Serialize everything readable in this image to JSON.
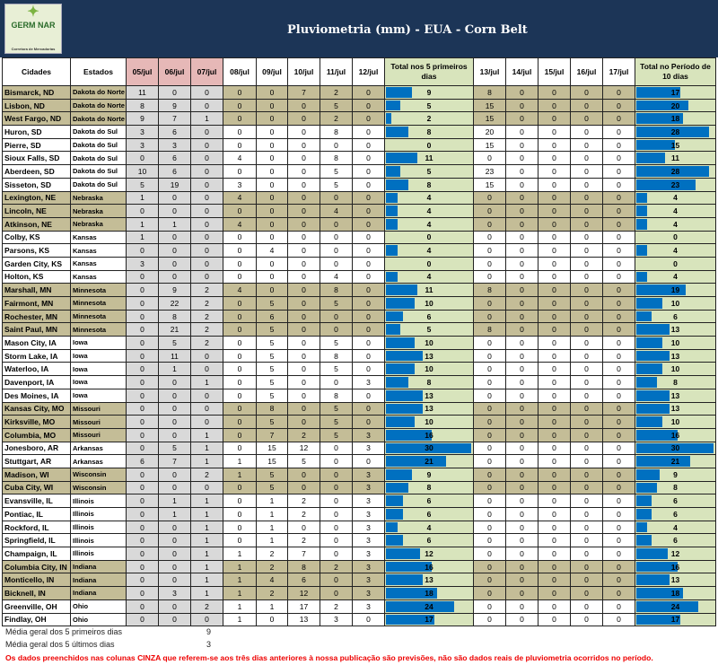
{
  "header": {
    "title": "Pluviometria (mm) - EUA - Corn Belt",
    "logo_text": "GERM NAR",
    "logo_sub": "Corretora de Mercadorias"
  },
  "columns": [
    "Cidades",
    "Estados",
    "05/jul",
    "06/jul",
    "07/jul",
    "08/jul",
    "09/jul",
    "10/jul",
    "11/jul",
    "12/jul",
    "Total nos 5 primeiros dias",
    "13/jul",
    "14/jul",
    "15/jul",
    "16/jul",
    "17/jul",
    "Total no Período de 10 dias"
  ],
  "colors": {
    "banner": "#1c3557",
    "tan": "#c4bd97",
    "gray": "#d9d9d9",
    "pink": "#e6b8b7",
    "total_bg": "#d8e4bc",
    "bar": "#0070c0",
    "note": "#ee0000"
  },
  "bar_max": 30,
  "rows": [
    {
      "city": "Bismarck, ND",
      "state": "Dakota do Norte",
      "shaded": true,
      "past": [
        11,
        0,
        0
      ],
      "d": [
        0,
        0,
        7,
        2,
        0
      ],
      "t5": 9,
      "n": [
        8,
        0,
        0,
        0,
        0
      ],
      "t10": 17
    },
    {
      "city": "Lisbon, ND",
      "state": "Dakota do Norte",
      "shaded": true,
      "past": [
        8,
        9,
        0
      ],
      "d": [
        0,
        0,
        0,
        5,
        0
      ],
      "t5": 5,
      "n": [
        15,
        0,
        0,
        0,
        0
      ],
      "t10": 20
    },
    {
      "city": "West Fargo, ND",
      "state": "Dakota do Norte",
      "shaded": true,
      "past": [
        9,
        7,
        1
      ],
      "d": [
        0,
        0,
        0,
        2,
        0
      ],
      "t5": 2,
      "n": [
        15,
        0,
        0,
        0,
        0
      ],
      "t10": 18
    },
    {
      "city": "Huron, SD",
      "state": "Dakota do Sul",
      "shaded": false,
      "past": [
        3,
        6,
        0
      ],
      "d": [
        0,
        0,
        0,
        8,
        0
      ],
      "t5": 8,
      "n": [
        20,
        0,
        0,
        0,
        0
      ],
      "t10": 28
    },
    {
      "city": "Pierre, SD",
      "state": "Dakota do Sul",
      "shaded": false,
      "past": [
        3,
        3,
        0
      ],
      "d": [
        0,
        0,
        0,
        0,
        0
      ],
      "t5": 0,
      "n": [
        15,
        0,
        0,
        0,
        0
      ],
      "t10": 15
    },
    {
      "city": "Sioux Falls, SD",
      "state": "Dakota do Sul",
      "shaded": false,
      "past": [
        0,
        6,
        0
      ],
      "d": [
        4,
        0,
        0,
        8,
        0
      ],
      "t5": 11,
      "n": [
        0,
        0,
        0,
        0,
        0
      ],
      "t10": 11
    },
    {
      "city": "Aberdeen, SD",
      "state": "Dakota do Sul",
      "shaded": false,
      "past": [
        10,
        6,
        0
      ],
      "d": [
        0,
        0,
        0,
        5,
        0
      ],
      "t5": 5,
      "n": [
        23,
        0,
        0,
        0,
        0
      ],
      "t10": 28
    },
    {
      "city": "Sisseton, SD",
      "state": "Dakota do Sul",
      "shaded": false,
      "past": [
        5,
        19,
        0
      ],
      "d": [
        3,
        0,
        0,
        5,
        0
      ],
      "t5": 8,
      "n": [
        15,
        0,
        0,
        0,
        0
      ],
      "t10": 23
    },
    {
      "city": "Lexington, NE",
      "state": "Nebraska",
      "shaded": true,
      "past": [
        1,
        0,
        0
      ],
      "d": [
        4,
        0,
        0,
        0,
        0
      ],
      "t5": 4,
      "n": [
        0,
        0,
        0,
        0,
        0
      ],
      "t10": 4
    },
    {
      "city": "Lincoln, NE",
      "state": "Nebraska",
      "shaded": true,
      "past": [
        0,
        0,
        0
      ],
      "d": [
        0,
        0,
        0,
        4,
        0
      ],
      "t5": 4,
      "n": [
        0,
        0,
        0,
        0,
        0
      ],
      "t10": 4
    },
    {
      "city": "Atkinson, NE",
      "state": "Nebraska",
      "shaded": true,
      "past": [
        1,
        1,
        0
      ],
      "d": [
        4,
        0,
        0,
        0,
        0
      ],
      "t5": 4,
      "n": [
        0,
        0,
        0,
        0,
        0
      ],
      "t10": 4
    },
    {
      "city": "Colby, KS",
      "state": "Kansas",
      "shaded": false,
      "past": [
        1,
        0,
        0
      ],
      "d": [
        0,
        0,
        0,
        0,
        0
      ],
      "t5": 0,
      "n": [
        0,
        0,
        0,
        0,
        0
      ],
      "t10": 0
    },
    {
      "city": "Parsons, KS",
      "state": "Kansas",
      "shaded": false,
      "past": [
        0,
        0,
        0
      ],
      "d": [
        0,
        4,
        0,
        0,
        0
      ],
      "t5": 4,
      "n": [
        0,
        0,
        0,
        0,
        0
      ],
      "t10": 4
    },
    {
      "city": "Garden City, KS",
      "state": "Kansas",
      "shaded": false,
      "past": [
        3,
        0,
        0
      ],
      "d": [
        0,
        0,
        0,
        0,
        0
      ],
      "t5": 0,
      "n": [
        0,
        0,
        0,
        0,
        0
      ],
      "t10": 0
    },
    {
      "city": "Holton, KS",
      "state": "Kansas",
      "shaded": false,
      "past": [
        0,
        0,
        0
      ],
      "d": [
        0,
        0,
        0,
        4,
        0
      ],
      "t5": 4,
      "n": [
        0,
        0,
        0,
        0,
        0
      ],
      "t10": 4
    },
    {
      "city": "Marshall, MN",
      "state": "Minnesota",
      "shaded": true,
      "past": [
        0,
        9,
        2
      ],
      "d": [
        4,
        0,
        0,
        8,
        0
      ],
      "t5": 11,
      "n": [
        8,
        0,
        0,
        0,
        0
      ],
      "t10": 19
    },
    {
      "city": "Fairmont, MN",
      "state": "Minnesota",
      "shaded": true,
      "past": [
        0,
        22,
        2
      ],
      "d": [
        0,
        5,
        0,
        5,
        0
      ],
      "t5": 10,
      "n": [
        0,
        0,
        0,
        0,
        0
      ],
      "t10": 10
    },
    {
      "city": "Rochester, MN",
      "state": "Minnesota",
      "shaded": true,
      "past": [
        0,
        8,
        2
      ],
      "d": [
        0,
        6,
        0,
        0,
        0
      ],
      "t5": 6,
      "n": [
        0,
        0,
        0,
        0,
        0
      ],
      "t10": 6
    },
    {
      "city": "Saint Paul, MN",
      "state": "Minnesota",
      "shaded": true,
      "past": [
        0,
        21,
        2
      ],
      "d": [
        0,
        5,
        0,
        0,
        0
      ],
      "t5": 5,
      "n": [
        8,
        0,
        0,
        0,
        0
      ],
      "t10": 13
    },
    {
      "city": "Mason City, IA",
      "state": "Iowa",
      "shaded": false,
      "past": [
        0,
        5,
        2
      ],
      "d": [
        0,
        5,
        0,
        5,
        0
      ],
      "t5": 10,
      "n": [
        0,
        0,
        0,
        0,
        0
      ],
      "t10": 10
    },
    {
      "city": "Storm Lake, IA",
      "state": "Iowa",
      "shaded": false,
      "past": [
        0,
        11,
        0
      ],
      "d": [
        0,
        5,
        0,
        8,
        0
      ],
      "t5": 13,
      "n": [
        0,
        0,
        0,
        0,
        0
      ],
      "t10": 13
    },
    {
      "city": "Waterloo, IA",
      "state": "Iowa",
      "shaded": false,
      "past": [
        0,
        1,
        0
      ],
      "d": [
        0,
        5,
        0,
        5,
        0
      ],
      "t5": 10,
      "n": [
        0,
        0,
        0,
        0,
        0
      ],
      "t10": 10
    },
    {
      "city": "Davenport, IA",
      "state": "Iowa",
      "shaded": false,
      "past": [
        0,
        0,
        1
      ],
      "d": [
        0,
        5,
        0,
        0,
        3
      ],
      "t5": 8,
      "n": [
        0,
        0,
        0,
        0,
        0
      ],
      "t10": 8
    },
    {
      "city": "Des Moines, IA",
      "state": "Iowa",
      "shaded": false,
      "past": [
        0,
        0,
        0
      ],
      "d": [
        0,
        5,
        0,
        8,
        0
      ],
      "t5": 13,
      "n": [
        0,
        0,
        0,
        0,
        0
      ],
      "t10": 13
    },
    {
      "city": "Kansas City, MO",
      "state": "Missouri",
      "shaded": true,
      "past": [
        0,
        0,
        0
      ],
      "d": [
        0,
        8,
        0,
        5,
        0
      ],
      "t5": 13,
      "n": [
        0,
        0,
        0,
        0,
        0
      ],
      "t10": 13
    },
    {
      "city": "Kirksville, MO",
      "state": "Missouri",
      "shaded": true,
      "past": [
        0,
        0,
        0
      ],
      "d": [
        0,
        5,
        0,
        5,
        0
      ],
      "t5": 10,
      "n": [
        0,
        0,
        0,
        0,
        0
      ],
      "t10": 10
    },
    {
      "city": "Columbia, MO",
      "state": "Missouri",
      "shaded": true,
      "past": [
        0,
        0,
        1
      ],
      "d": [
        0,
        7,
        2,
        5,
        3
      ],
      "t5": 16,
      "n": [
        0,
        0,
        0,
        0,
        0
      ],
      "t10": 16
    },
    {
      "city": "Jonesboro, AR",
      "state": "Arkansas",
      "shaded": false,
      "past": [
        0,
        5,
        1
      ],
      "d": [
        0,
        15,
        12,
        0,
        3
      ],
      "t5": 30,
      "n": [
        0,
        0,
        0,
        0,
        0
      ],
      "t10": 30
    },
    {
      "city": "Stuttgart, AR",
      "state": "Arkansas",
      "shaded": false,
      "past": [
        6,
        7,
        1
      ],
      "d": [
        1,
        15,
        5,
        0,
        0
      ],
      "t5": 21,
      "n": [
        0,
        0,
        0,
        0,
        0
      ],
      "t10": 21
    },
    {
      "city": "Madison, WI",
      "state": "Wisconsin",
      "shaded": true,
      "past": [
        0,
        0,
        2
      ],
      "d": [
        1,
        5,
        0,
        0,
        3
      ],
      "t5": 9,
      "n": [
        0,
        0,
        0,
        0,
        0
      ],
      "t10": 9
    },
    {
      "city": "Cuba City, WI",
      "state": "Wisconsin",
      "shaded": true,
      "past": [
        0,
        0,
        0
      ],
      "d": [
        0,
        5,
        0,
        0,
        3
      ],
      "t5": 8,
      "n": [
        0,
        0,
        0,
        0,
        0
      ],
      "t10": 8
    },
    {
      "city": "Evansville, IL",
      "state": "Illinois",
      "shaded": false,
      "past": [
        0,
        1,
        1
      ],
      "d": [
        0,
        1,
        2,
        0,
        3
      ],
      "t5": 6,
      "n": [
        0,
        0,
        0,
        0,
        0
      ],
      "t10": 6
    },
    {
      "city": "Pontiac, IL",
      "state": "Illinois",
      "shaded": false,
      "past": [
        0,
        1,
        1
      ],
      "d": [
        0,
        1,
        2,
        0,
        3
      ],
      "t5": 6,
      "n": [
        0,
        0,
        0,
        0,
        0
      ],
      "t10": 6
    },
    {
      "city": "Rockford, IL",
      "state": "Illinois",
      "shaded": false,
      "past": [
        0,
        0,
        1
      ],
      "d": [
        0,
        1,
        0,
        0,
        3
      ],
      "t5": 4,
      "n": [
        0,
        0,
        0,
        0,
        0
      ],
      "t10": 4
    },
    {
      "city": "Springfield, IL",
      "state": "Illinois",
      "shaded": false,
      "past": [
        0,
        0,
        1
      ],
      "d": [
        0,
        1,
        2,
        0,
        3
      ],
      "t5": 6,
      "n": [
        0,
        0,
        0,
        0,
        0
      ],
      "t10": 6
    },
    {
      "city": "Champaign, IL",
      "state": "Illinois",
      "shaded": false,
      "past": [
        0,
        0,
        1
      ],
      "d": [
        1,
        2,
        7,
        0,
        3
      ],
      "t5": 12,
      "n": [
        0,
        0,
        0,
        0,
        0
      ],
      "t10": 12
    },
    {
      "city": "Columbia City, IN",
      "state": "Indiana",
      "shaded": true,
      "past": [
        0,
        0,
        1
      ],
      "d": [
        1,
        2,
        8,
        2,
        3
      ],
      "t5": 16,
      "n": [
        0,
        0,
        0,
        0,
        0
      ],
      "t10": 16
    },
    {
      "city": "Monticello, IN",
      "state": "Indiana",
      "shaded": true,
      "past": [
        0,
        0,
        1
      ],
      "d": [
        1,
        4,
        6,
        0,
        3
      ],
      "t5": 13,
      "n": [
        0,
        0,
        0,
        0,
        0
      ],
      "t10": 13
    },
    {
      "city": "Bicknell, IN",
      "state": "Indiana",
      "shaded": true,
      "past": [
        0,
        3,
        1
      ],
      "d": [
        1,
        2,
        12,
        0,
        3
      ],
      "t5": 18,
      "n": [
        0,
        0,
        0,
        0,
        0
      ],
      "t10": 18
    },
    {
      "city": "Greenville, OH",
      "state": "Ohio",
      "shaded": false,
      "past": [
        0,
        0,
        2
      ],
      "d": [
        1,
        1,
        17,
        2,
        3
      ],
      "t5": 24,
      "n": [
        0,
        0,
        0,
        0,
        0
      ],
      "t10": 24
    },
    {
      "city": "Findlay, OH",
      "state": "Ohio",
      "shaded": false,
      "past": [
        0,
        0,
        0
      ],
      "d": [
        1,
        0,
        13,
        3,
        0
      ],
      "t5": 17,
      "n": [
        0,
        0,
        0,
        0,
        0
      ],
      "t10": 17
    }
  ],
  "footer": {
    "avg_first_label": "Média geral dos 5 primeiros dias",
    "avg_first": "9",
    "avg_last_label": "Média geral dos 5 últimos dias",
    "avg_last": "3",
    "note": "Os dados preenchidos nas colunas CINZA que referem-se aos três dias anteriores à nossa publicação são previsões, não são dados reais de pluviometria ocorridos no período."
  }
}
